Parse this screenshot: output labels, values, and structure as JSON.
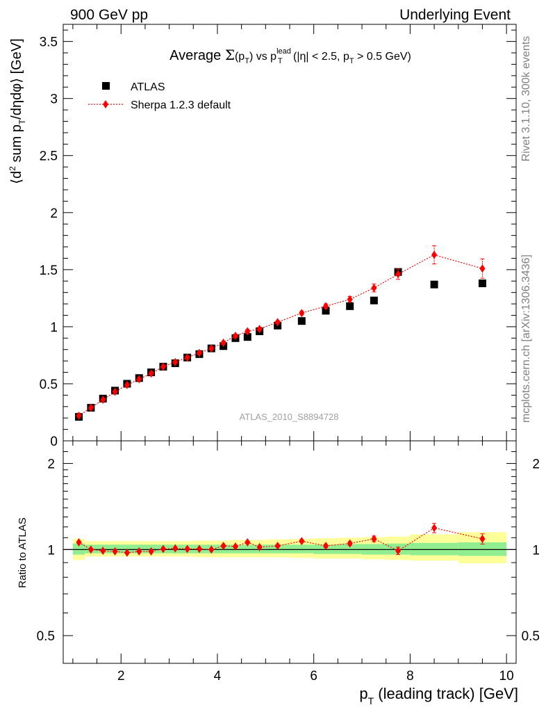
{
  "header": {
    "left": "900 GeV pp",
    "right": "Underlying Event"
  },
  "side_texts": {
    "rivet": "Rivet 3.1.10,  300k events",
    "mcplots": "mcplots.cern.ch [arXiv:1306.3436]"
  },
  "chart_data": [
    {
      "type": "scatter",
      "panel": "main",
      "title": {
        "prefix": "Average ",
        "sigma": "Σ",
        "sigma_arg": "(p",
        "sigma_arg_sub": "T",
        "sigma_arg_close": ")",
        "vs": " vs p",
        "lead_sup": "lead",
        "lead_sub": "T",
        "cuts_a": " (|η| < 2.5, p",
        "cuts_sub": "T",
        "cuts_b": " > 0.5 GeV)"
      },
      "ylabel": {
        "open": "⟨d",
        "sup": "2",
        "mid": " sum p",
        "sub": "T",
        "rest": "/dηdφ⟩ [GeV]"
      },
      "watermark": "ATLAS_2010_S8894728",
      "xlim": [
        0.8,
        10.2
      ],
      "ylim": [
        0,
        3.65
      ],
      "yticks": [
        0,
        0.5,
        1,
        1.5,
        2,
        2.5,
        3,
        3.5
      ],
      "ytick_labels": [
        "0",
        "0.5",
        "1",
        "1.5",
        "2",
        "2.5",
        "3",
        "3.5"
      ],
      "legend_position": "top-left",
      "series": [
        {
          "name": "ATLAS",
          "marker": "square",
          "color": "#000000",
          "x": [
            1.125,
            1.375,
            1.625,
            1.875,
            2.125,
            2.375,
            2.625,
            2.875,
            3.125,
            3.375,
            3.625,
            3.875,
            4.125,
            4.375,
            4.625,
            4.875,
            5.25,
            5.75,
            6.25,
            6.75,
            7.25,
            7.75,
            8.5,
            9.5
          ],
          "y": [
            0.21,
            0.29,
            0.37,
            0.44,
            0.5,
            0.55,
            0.6,
            0.65,
            0.68,
            0.73,
            0.76,
            0.81,
            0.83,
            0.9,
            0.91,
            0.96,
            1.01,
            1.05,
            1.14,
            1.18,
            1.23,
            1.48,
            1.37,
            1.38
          ]
        },
        {
          "name": "Sherpa 1.2.3 default",
          "marker": "diamond",
          "line": "dotted",
          "color": "#ff0000",
          "x": [
            1.125,
            1.375,
            1.625,
            1.875,
            2.125,
            2.375,
            2.625,
            2.875,
            3.125,
            3.375,
            3.625,
            3.875,
            4.125,
            4.375,
            4.625,
            4.875,
            5.25,
            5.75,
            6.25,
            6.75,
            7.25,
            7.75,
            8.5,
            9.5
          ],
          "y": [
            0.22,
            0.29,
            0.36,
            0.43,
            0.49,
            0.54,
            0.59,
            0.65,
            0.69,
            0.73,
            0.77,
            0.81,
            0.86,
            0.92,
            0.96,
            0.98,
            1.04,
            1.12,
            1.18,
            1.24,
            1.34,
            1.46,
            1.63,
            1.51
          ],
          "yerr": [
            0.005,
            0.005,
            0.005,
            0.005,
            0.005,
            0.006,
            0.007,
            0.008,
            0.009,
            0.01,
            0.011,
            0.012,
            0.013,
            0.015,
            0.016,
            0.016,
            0.014,
            0.016,
            0.02,
            0.025,
            0.035,
            0.045,
            0.08,
            0.085
          ]
        }
      ]
    },
    {
      "type": "scatter",
      "panel": "ratio",
      "ylabel": "Ratio to ATLAS",
      "xlabel": {
        "p": "p",
        "sub": "T",
        "rest": " (leading track) [GeV]"
      },
      "xlim": [
        0.8,
        10.2
      ],
      "ylim": [
        0.4,
        2.4
      ],
      "yscale": "log",
      "xticks": [
        2,
        4,
        6,
        8,
        10
      ],
      "xtick_labels": [
        "2",
        "4",
        "6",
        "8",
        "10"
      ],
      "yticks": [
        0.5,
        1,
        2
      ],
      "ytick_labels": [
        "0.5",
        "1",
        "2"
      ],
      "reference_line": 1,
      "bands": {
        "x_edges": [
          1.0,
          1.25,
          1.5,
          1.75,
          2.0,
          2.25,
          2.5,
          2.75,
          3.0,
          3.25,
          3.5,
          3.75,
          4.0,
          4.25,
          4.5,
          4.75,
          5.0,
          5.5,
          6.0,
          6.5,
          7.0,
          7.5,
          8.0,
          9.0,
          10.0
        ],
        "green": {
          "color": "#90ee90",
          "lo": [
            0.96,
            0.97,
            0.97,
            0.97,
            0.97,
            0.97,
            0.97,
            0.97,
            0.97,
            0.97,
            0.97,
            0.97,
            0.97,
            0.97,
            0.97,
            0.97,
            0.97,
            0.97,
            0.965,
            0.965,
            0.96,
            0.96,
            0.955,
            0.95
          ],
          "hi": [
            1.05,
            1.04,
            1.04,
            1.04,
            1.04,
            1.04,
            1.04,
            1.04,
            1.04,
            1.04,
            1.04,
            1.04,
            1.04,
            1.04,
            1.04,
            1.04,
            1.04,
            1.04,
            1.04,
            1.045,
            1.045,
            1.05,
            1.055,
            1.06
          ]
        },
        "yellow": {
          "color": "#ffff99",
          "lo": [
            0.92,
            0.945,
            0.945,
            0.945,
            0.945,
            0.945,
            0.945,
            0.945,
            0.945,
            0.945,
            0.94,
            0.94,
            0.94,
            0.94,
            0.94,
            0.94,
            0.94,
            0.935,
            0.93,
            0.93,
            0.925,
            0.92,
            0.915,
            0.895
          ],
          "hi": [
            1.09,
            1.07,
            1.07,
            1.07,
            1.07,
            1.07,
            1.07,
            1.07,
            1.07,
            1.07,
            1.075,
            1.075,
            1.075,
            1.08,
            1.08,
            1.08,
            1.085,
            1.09,
            1.095,
            1.1,
            1.105,
            1.11,
            1.13,
            1.15
          ]
        }
      },
      "series": [
        {
          "name": "Sherpa 1.2.3 default",
          "marker": "diamond",
          "line": "dotted",
          "color": "#ff0000",
          "x": [
            1.125,
            1.375,
            1.625,
            1.875,
            2.125,
            2.375,
            2.625,
            2.875,
            3.125,
            3.375,
            3.625,
            3.875,
            4.125,
            4.375,
            4.625,
            4.875,
            5.25,
            5.75,
            6.25,
            6.75,
            7.25,
            7.75,
            8.5,
            9.5
          ],
          "y": [
            1.06,
            1.0,
            0.99,
            0.985,
            0.975,
            0.985,
            0.985,
            1.005,
            1.01,
            1.005,
            1.005,
            1.0,
            1.03,
            1.025,
            1.06,
            1.02,
            1.03,
            1.07,
            1.03,
            1.05,
            1.09,
            0.99,
            1.19,
            1.09
          ],
          "yerr": [
            0.01,
            0.005,
            0.005,
            0.005,
            0.005,
            0.005,
            0.005,
            0.006,
            0.006,
            0.007,
            0.007,
            0.008,
            0.009,
            0.01,
            0.01,
            0.01,
            0.01,
            0.012,
            0.013,
            0.015,
            0.025,
            0.03,
            0.045,
            0.045
          ]
        }
      ]
    }
  ]
}
